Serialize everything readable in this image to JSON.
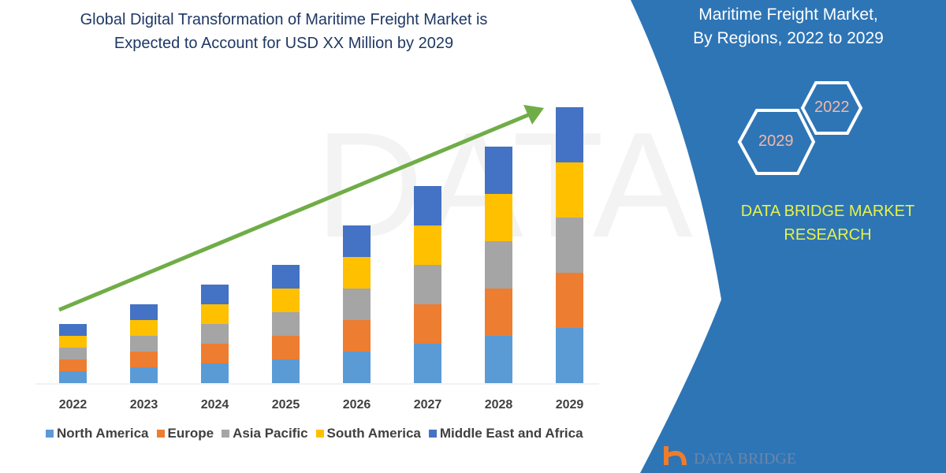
{
  "title_lines": [
    "Global Digital Transformation of Maritime Freight Market is",
    "Expected to Account for USD XX Million by 2029"
  ],
  "side_panel": {
    "title_lines": [
      "Maritime Freight Market,",
      "By Regions, 2022 to 2029"
    ],
    "hex_labels": [
      "2022",
      "2029"
    ],
    "brand_lines": [
      "DATA BRIDGE MARKET",
      "RESEARCH"
    ],
    "logo_text": "DATA BRIDGE",
    "panel_color": "#2e75b6",
    "brand_color": "#e6f24a"
  },
  "chart_data": {
    "type": "bar",
    "stacked": true,
    "categories": [
      "2022",
      "2023",
      "2024",
      "2025",
      "2026",
      "2027",
      "2028",
      "2029"
    ],
    "series": [
      {
        "name": "North America",
        "color": "#5b9bd5",
        "values": [
          3,
          4,
          5,
          6,
          8,
          10,
          12,
          14
        ]
      },
      {
        "name": "Europe",
        "color": "#ed7d31",
        "values": [
          3,
          4,
          5,
          6,
          8,
          10,
          12,
          14
        ]
      },
      {
        "name": "Asia Pacific",
        "color": "#a5a5a5",
        "values": [
          3,
          4,
          5,
          6,
          8,
          10,
          12,
          14
        ]
      },
      {
        "name": "South America",
        "color": "#ffc000",
        "values": [
          3,
          4,
          5,
          6,
          8,
          10,
          12,
          14
        ]
      },
      {
        "name": "Middle East and Africa",
        "color": "#4472c4",
        "values": [
          3,
          4,
          5,
          6,
          8,
          10,
          12,
          14
        ]
      }
    ],
    "trend_arrow_color": "#70ad47",
    "y_axis_shown": false,
    "grid": false,
    "legend_position": "bottom"
  }
}
